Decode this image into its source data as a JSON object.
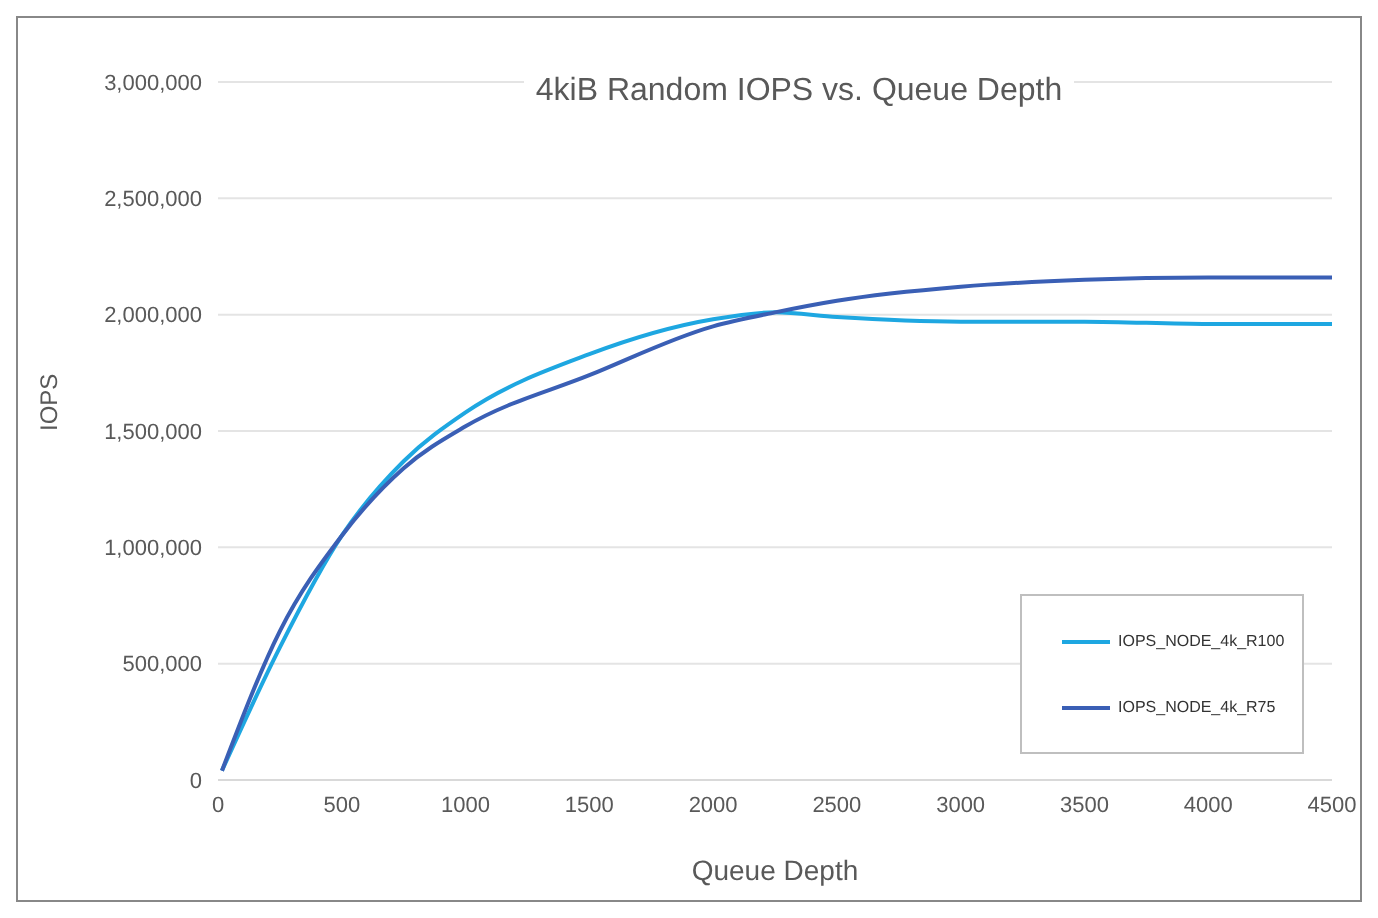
{
  "chart_data": {
    "type": "line",
    "title": "4kiB Random IOPS vs. Queue Depth",
    "xlabel": "Queue Depth",
    "ylabel": "IOPS",
    "x": [
      16,
      250,
      500,
      750,
      1000,
      1500,
      2000,
      2250,
      2500,
      3000,
      3500,
      4000,
      4500
    ],
    "series": [
      {
        "name": "IOPS_NODE_4k_R100",
        "color": "#1ea7e1",
        "values": [
          40000,
          570000,
          1050000,
          1370000,
          1580000,
          1830000,
          1980000,
          2010000,
          1990000,
          1970000,
          1970000,
          1960000,
          1960000
        ]
      },
      {
        "name": "IOPS_NODE_4k_R75",
        "color": "#3a5fb5",
        "values": [
          40000,
          640000,
          1050000,
          1340000,
          1520000,
          1740000,
          1950000,
          2010000,
          2060000,
          2120000,
          2150000,
          2160000,
          2160000
        ]
      }
    ],
    "xlim": [
      0,
      4500
    ],
    "xticks": [
      0,
      500,
      1000,
      1500,
      2000,
      2500,
      3000,
      3500,
      4000,
      4500
    ],
    "ylim": [
      0,
      3000000
    ],
    "yticks": [
      0,
      {
        "value": 500000,
        "label": "500,000"
      },
      {
        "value": 1000000,
        "label": "1,000,000"
      },
      {
        "value": 1500000,
        "label": "1,500,000"
      },
      {
        "value": 2000000,
        "label": "2,000,000"
      },
      {
        "value": 2500000,
        "label": "2,500,000"
      },
      {
        "value": 3000000,
        "label": "3,000,000"
      }
    ],
    "grid": "y",
    "legend": "bottom right",
    "marker": "none",
    "line_style": "solid"
  }
}
